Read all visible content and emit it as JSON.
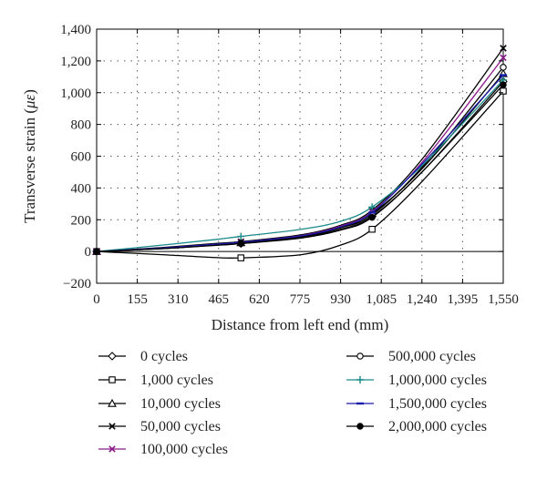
{
  "chart_data": {
    "type": "line",
    "title": "",
    "xlabel": "Distance from left end (mm)",
    "ylabel_prefix": "Transverse strain (",
    "ylabel_symbol": "με",
    "ylabel_suffix": ")",
    "xlim": [
      0,
      1550
    ],
    "ylim": [
      -200,
      1400
    ],
    "x_ticks": [
      0,
      155,
      310,
      465,
      620,
      775,
      930,
      1085,
      1240,
      1395,
      1550
    ],
    "x_tick_labels": [
      "0",
      "155",
      "310",
      "465",
      "620",
      "775",
      "930",
      "1,085",
      "1,240",
      "1,395",
      "1,550"
    ],
    "y_ticks": [
      -200,
      0,
      200,
      400,
      600,
      800,
      1000,
      1200,
      1400
    ],
    "y_tick_labels": [
      "−200",
      "0",
      "200",
      "400",
      "600",
      "800",
      "1,000",
      "1,200",
      "1,400"
    ],
    "grid": true,
    "legend_position": "bottom",
    "series": [
      {
        "name": "0 cycles",
        "color": "#000000",
        "marker": "diamond-open",
        "x": [
          0,
          250,
          450,
          550,
          780,
          930,
          1050,
          1240,
          1550
        ],
        "y": [
          0,
          18,
          40,
          50,
          90,
          140,
          220,
          500,
          1070
        ]
      },
      {
        "name": "1,000 cycles",
        "color": "#000000",
        "marker": "square-open",
        "x": [
          0,
          250,
          450,
          550,
          780,
          930,
          1050,
          1240,
          1550
        ],
        "y": [
          0,
          -20,
          -38,
          -40,
          -20,
          40,
          140,
          440,
          1010
        ]
      },
      {
        "name": "10,000 cycles",
        "color": "#000000",
        "marker": "triangle-open",
        "x": [
          0,
          250,
          450,
          550,
          780,
          930,
          1050,
          1240,
          1550
        ],
        "y": [
          0,
          22,
          45,
          55,
          95,
          150,
          240,
          520,
          1120
        ]
      },
      {
        "name": "50,000 cycles",
        "color": "#000000",
        "marker": "x",
        "x": [
          0,
          250,
          450,
          550,
          780,
          930,
          1050,
          1240,
          1550
        ],
        "y": [
          0,
          25,
          50,
          62,
          105,
          165,
          260,
          580,
          1280
        ]
      },
      {
        "name": "100,000 cycles",
        "color": "#8b1a8b",
        "marker": "x",
        "x": [
          0,
          250,
          450,
          550,
          780,
          930,
          1050,
          1240,
          1550
        ],
        "y": [
          0,
          22,
          45,
          58,
          100,
          160,
          250,
          560,
          1220
        ]
      },
      {
        "name": "500,000 cycles",
        "color": "#000000",
        "marker": "circle-open",
        "x": [
          0,
          250,
          450,
          550,
          780,
          930,
          1050,
          1240,
          1550
        ],
        "y": [
          0,
          20,
          42,
          55,
          95,
          150,
          230,
          530,
          1160
        ]
      },
      {
        "name": "1,000,000 cycles",
        "color": "#1a8a8a",
        "marker": "plus",
        "x": [
          0,
          250,
          450,
          550,
          780,
          930,
          1050,
          1240,
          1550
        ],
        "y": [
          0,
          40,
          75,
          95,
          140,
          190,
          280,
          540,
          1080
        ]
      },
      {
        "name": "1,500,000 cycles",
        "color": "#1a1aa8",
        "marker": "dash",
        "x": [
          0,
          250,
          450,
          550,
          780,
          930,
          1050,
          1240,
          1550
        ],
        "y": [
          0,
          22,
          45,
          58,
          98,
          155,
          245,
          550,
          1110
        ]
      },
      {
        "name": "2,000,000 cycles",
        "color": "#000000",
        "marker": "circle-filled",
        "x": [
          0,
          250,
          450,
          550,
          780,
          930,
          1050,
          1240,
          1550
        ],
        "y": [
          0,
          18,
          38,
          50,
          85,
          135,
          215,
          500,
          1050
        ]
      }
    ]
  }
}
